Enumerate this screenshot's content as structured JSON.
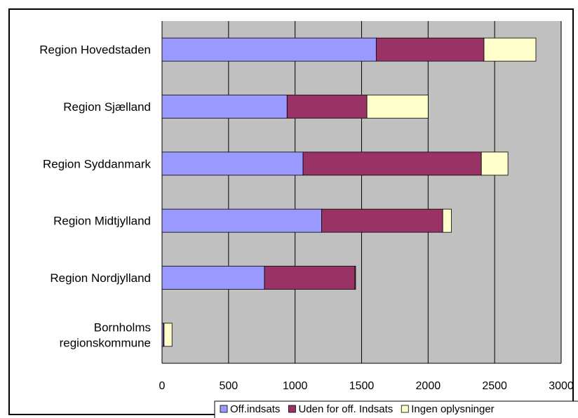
{
  "chart_data": {
    "type": "bar",
    "orientation": "horizontal",
    "stacked": true,
    "categories": [
      [
        "Region Hovedstaden"
      ],
      [
        "Region Sjælland"
      ],
      [
        "Region Syddanmark"
      ],
      [
        "Region Midtjylland"
      ],
      [
        "Region Nordjylland"
      ],
      [
        "Bornholms",
        "regionskommune"
      ]
    ],
    "series": [
      {
        "name": "Off.indsats",
        "color": "#9999FF",
        "values": [
          1610,
          940,
          1060,
          1200,
          770,
          10
        ]
      },
      {
        "name": "Uden for off. Indsats",
        "color": "#993366",
        "values": [
          810,
          600,
          1340,
          910,
          680,
          5
        ]
      },
      {
        "name": "Ingen oplysninger",
        "color": "#FFFFCC",
        "values": [
          390,
          460,
          200,
          65,
          5,
          60
        ]
      }
    ],
    "xlim": [
      0,
      3000
    ],
    "xticks": [
      "0",
      "500",
      "1000",
      "1500",
      "2000",
      "2500",
      "3000"
    ],
    "grid": true,
    "plot_background": "#C0C0C0",
    "legend_position": "bottom"
  }
}
